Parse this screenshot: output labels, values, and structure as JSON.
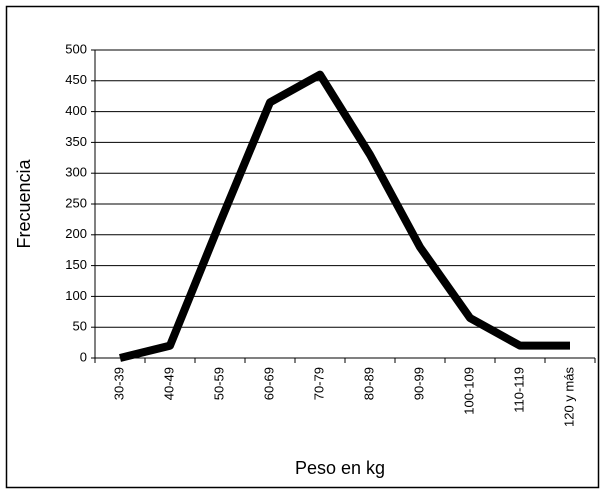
{
  "chart_data": {
    "type": "line",
    "x_label": "Peso en kg",
    "y_label": "Frecuencia",
    "categories": [
      "30-39",
      "40-49",
      "50-59",
      "60-69",
      "70-79",
      "80-89",
      "90-99",
      "100-109",
      "110-119",
      "120 y más"
    ],
    "series": [
      {
        "color": "#000000",
        "values": [
          0,
          20,
          220,
          415,
          460,
          330,
          180,
          65,
          20,
          20
        ]
      }
    ],
    "ylim": [
      0,
      500
    ],
    "yticks": [
      0,
      50,
      100,
      150,
      200,
      250,
      300,
      350,
      400,
      450,
      500
    ],
    "grid": true
  }
}
